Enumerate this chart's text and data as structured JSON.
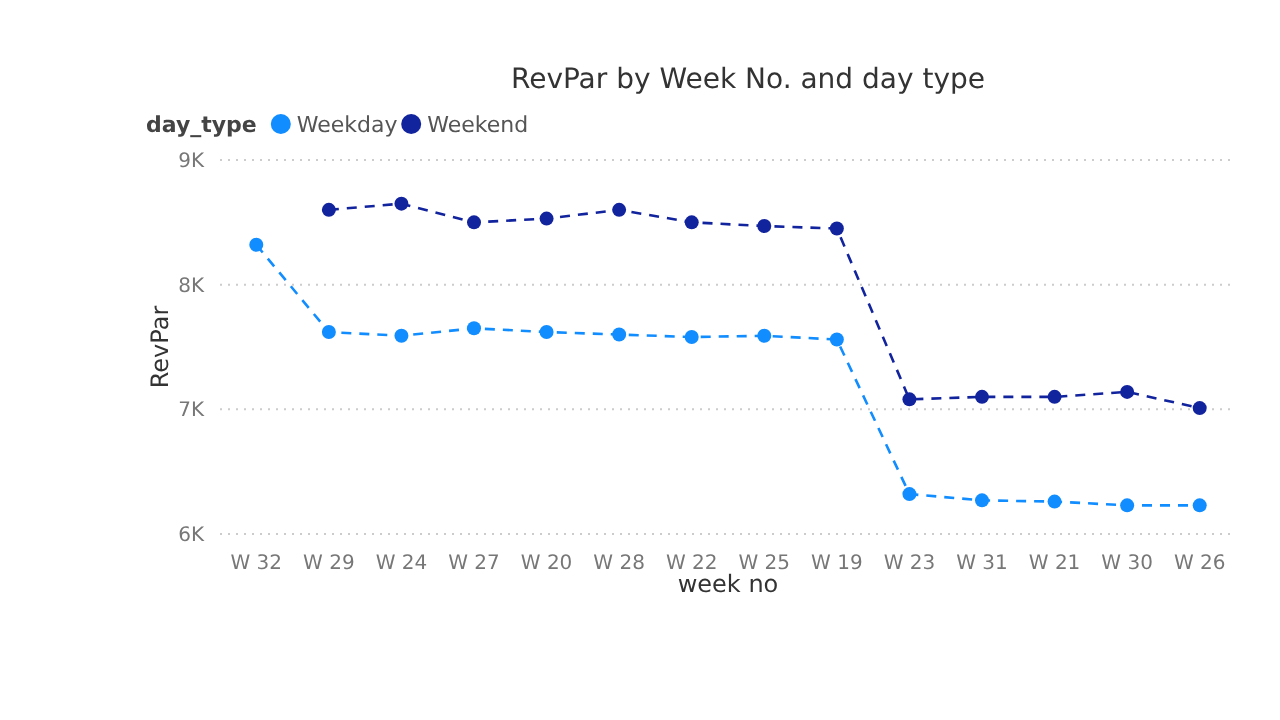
{
  "chart_data": {
    "type": "line",
    "title": "RevPar by Week No. and day type",
    "xlabel": "week no",
    "ylabel": "RevPar",
    "legend_title": "day_type",
    "legend": "top left",
    "grid": "y",
    "marker": "circle",
    "line_style": "dashed",
    "categories": [
      "W 32",
      "W 29",
      "W 24",
      "W 27",
      "W 20",
      "W 28",
      "W 22",
      "W 25",
      "W 19",
      "W 23",
      "W 31",
      "W 21",
      "W 30",
      "W 26"
    ],
    "ylim": [
      6000,
      9000
    ],
    "yticks": [
      {
        "value": 6000,
        "label": "6K"
      },
      {
        "value": 7000,
        "label": "7K"
      },
      {
        "value": 8000,
        "label": "8K"
      },
      {
        "value": 9000,
        "label": "9K"
      }
    ],
    "series": [
      {
        "name": "Weekday",
        "color": "#118dff",
        "values": [
          8320,
          7620,
          7590,
          7650,
          7620,
          7600,
          7580,
          7590,
          7560,
          6320,
          6270,
          6260,
          6230,
          6230
        ]
      },
      {
        "name": "Weekend",
        "color": "#12239e",
        "values": [
          null,
          8600,
          8650,
          8500,
          8530,
          8600,
          8500,
          8470,
          8450,
          7080,
          7100,
          7100,
          7140,
          7010
        ]
      }
    ]
  }
}
